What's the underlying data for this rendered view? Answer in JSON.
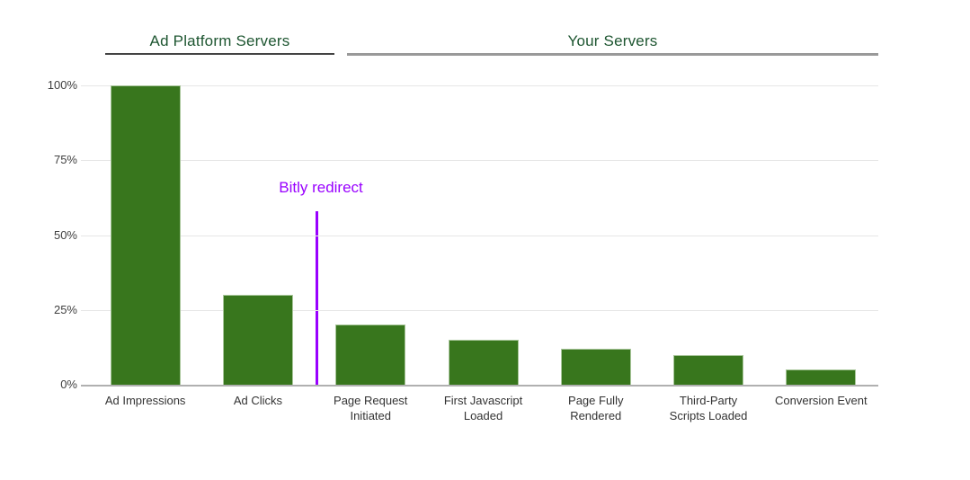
{
  "chart": {
    "section_headers": [
      {
        "label": "Ad Platform Servers"
      },
      {
        "label": "Your Servers"
      }
    ],
    "annotation": {
      "label": "Bitly redirect"
    },
    "colors": {
      "bar_fill": "#38761d",
      "bar_border": "#a9c69b",
      "header_text": "#1e5631",
      "header1_underline": "#434343",
      "header2_underline": "#999999",
      "annotation_purple": "#9900ff",
      "gridline": "#e6e6e6",
      "baseline": "#b0b0b0",
      "y_axis_text": "#404040",
      "x_axis_text": "#333333"
    }
  },
  "chart_data": {
    "type": "bar",
    "title": "",
    "xlabel": "",
    "ylabel": "",
    "unit": "%",
    "ylim": [
      0,
      100
    ],
    "yticks": [
      0,
      25,
      50,
      75,
      100
    ],
    "ytick_labels": [
      "0%",
      "25%",
      "50%",
      "75%",
      "100%"
    ],
    "grid": true,
    "legend": "none",
    "categories": [
      "Ad Impressions",
      "Ad Clicks",
      "Page Request Initiated",
      "First Javascript Loaded",
      "Page Fully Rendered",
      "Third-Party Scripts Loaded",
      "Conversion Event"
    ],
    "category_lines": [
      [
        "Ad Impressions"
      ],
      [
        "Ad Clicks"
      ],
      [
        "Page Request",
        "Initiated"
      ],
      [
        "First Javascript",
        "Loaded"
      ],
      [
        "Page Fully",
        "Rendered"
      ],
      [
        "Third-Party",
        "Scripts Loaded"
      ],
      [
        "Conversion Event"
      ]
    ],
    "values": [
      100,
      30,
      20,
      15,
      12,
      10,
      5
    ],
    "groups": [
      {
        "label": "Ad Platform Servers",
        "categories": [
          "Ad Impressions",
          "Ad Clicks"
        ]
      },
      {
        "label": "Your Servers",
        "categories": [
          "Page Request Initiated",
          "First Javascript Loaded",
          "Page Fully Rendered",
          "Third-Party Scripts Loaded",
          "Conversion Event"
        ]
      }
    ],
    "annotations": [
      {
        "type": "vertical-line",
        "label": "Bitly redirect",
        "position": "between Ad Clicks and Page Request Initiated"
      }
    ]
  }
}
